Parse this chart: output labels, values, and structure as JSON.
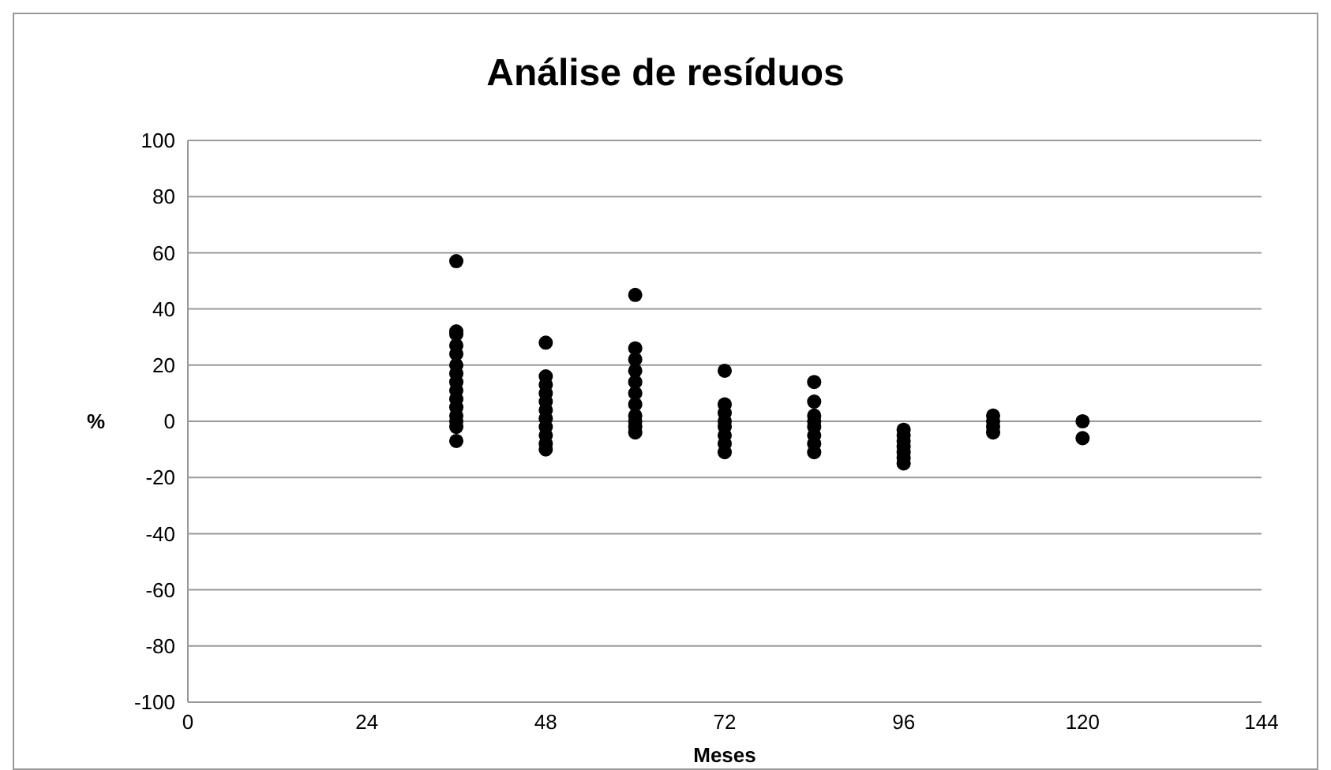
{
  "chart_data": {
    "type": "scatter",
    "title": "Análise de resíduos",
    "xlabel": "Meses",
    "ylabel": "%",
    "x": [
      36,
      36,
      36,
      36,
      36,
      36,
      36,
      36,
      36,
      36,
      36,
      36,
      36,
      36,
      36,
      48,
      48,
      48,
      48,
      48,
      48,
      48,
      48,
      48,
      48,
      48,
      60,
      60,
      60,
      60,
      60,
      60,
      60,
      60,
      60,
      60,
      60,
      72,
      72,
      72,
      72,
      72,
      72,
      72,
      72,
      84,
      84,
      84,
      84,
      84,
      84,
      84,
      84,
      96,
      96,
      96,
      96,
      96,
      96,
      96,
      108,
      108,
      108,
      108,
      120,
      120
    ],
    "values": [
      57,
      32,
      31,
      27,
      24,
      20,
      17,
      14,
      11,
      8,
      5,
      2,
      0,
      -2,
      -7,
      28,
      16,
      13,
      10,
      7,
      4,
      1,
      -2,
      -5,
      -8,
      -10,
      45,
      26,
      22,
      18,
      14,
      10,
      6,
      2,
      0,
      -2,
      -4,
      18,
      6,
      3,
      0,
      -2,
      -5,
      -8,
      -11,
      14,
      7,
      2,
      0,
      -2,
      -5,
      -8,
      -11,
      -3,
      -5,
      -7,
      -9,
      -11,
      -13,
      -15,
      2,
      0,
      -2,
      -4,
      0,
      -6
    ],
    "color": "#000000",
    "marker": "circle",
    "xlim": [
      0,
      144
    ],
    "xticks": [
      0,
      24,
      48,
      72,
      96,
      120,
      144
    ],
    "ylim": [
      -100,
      100
    ],
    "yticks": [
      -100,
      -80,
      -60,
      -40,
      -20,
      0,
      20,
      40,
      60,
      80,
      100
    ],
    "grid": "y"
  }
}
